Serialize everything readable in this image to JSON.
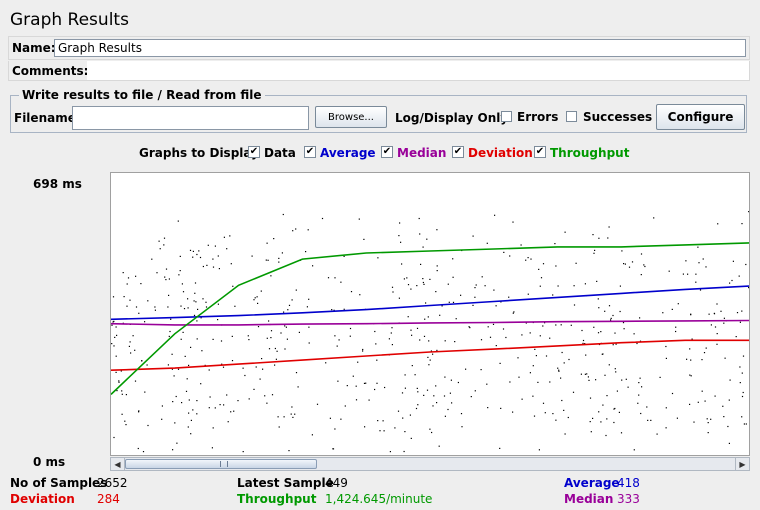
{
  "window": {
    "title": "Graph Results"
  },
  "form": {
    "name_label": "Name:",
    "name_value": "Graph Results",
    "comments_label": "Comments:"
  },
  "file_panel": {
    "legend": "Write results to file / Read from file",
    "filename_label": "Filename",
    "filename_value": "",
    "browse_label": "Browse...",
    "log_display_label": "Log/Display Only:",
    "errors_label": "Errors",
    "successes_label": "Successes",
    "configure_label": "Configure"
  },
  "graphs_to_display": {
    "label": "Graphs to Display",
    "options": [
      {
        "label": "Data",
        "checked": true,
        "color": "#000000"
      },
      {
        "label": "Average",
        "checked": true,
        "color": "#0000cc"
      },
      {
        "label": "Median",
        "checked": true,
        "color": "#990099"
      },
      {
        "label": "Deviation",
        "checked": true,
        "color": "#e00000"
      },
      {
        "label": "Throughput",
        "checked": true,
        "color": "#009900"
      }
    ]
  },
  "axis": {
    "max_label": "698 ms",
    "min_label": "0 ms"
  },
  "stats": {
    "samples_label": "No of Samples",
    "samples_value": "2652",
    "deviation_label": "Deviation",
    "deviation_value": "284",
    "latest_label": "Latest Sample",
    "latest_value": "449",
    "throughput_label": "Throughput",
    "throughput_value": "1,424.645/minute",
    "average_label": "Average",
    "average_value": "418",
    "median_label": "Median",
    "median_value": "333"
  },
  "chart_data": {
    "type": "line",
    "ylim": [
      0,
      698
    ],
    "x": [
      0,
      10,
      20,
      30,
      40,
      50,
      60,
      70,
      80,
      90,
      100
    ],
    "series": [
      {
        "name": "Average",
        "color": "#0000cc",
        "values": [
          336,
          340,
          345,
          352,
          360,
          370,
          380,
          390,
          400,
          410,
          418
        ]
      },
      {
        "name": "Median",
        "color": "#990099",
        "values": [
          325,
          322,
          322,
          324,
          325,
          327,
          328,
          330,
          331,
          332,
          333
        ]
      },
      {
        "name": "Deviation",
        "color": "#e00000",
        "values": [
          210,
          215,
          225,
          235,
          245,
          255,
          262,
          270,
          278,
          284,
          284
        ]
      },
      {
        "name": "Throughput",
        "color": "#009900",
        "values": [
          150,
          300,
          420,
          485,
          500,
          505,
          510,
          515,
          515,
          520,
          525
        ]
      }
    ]
  }
}
